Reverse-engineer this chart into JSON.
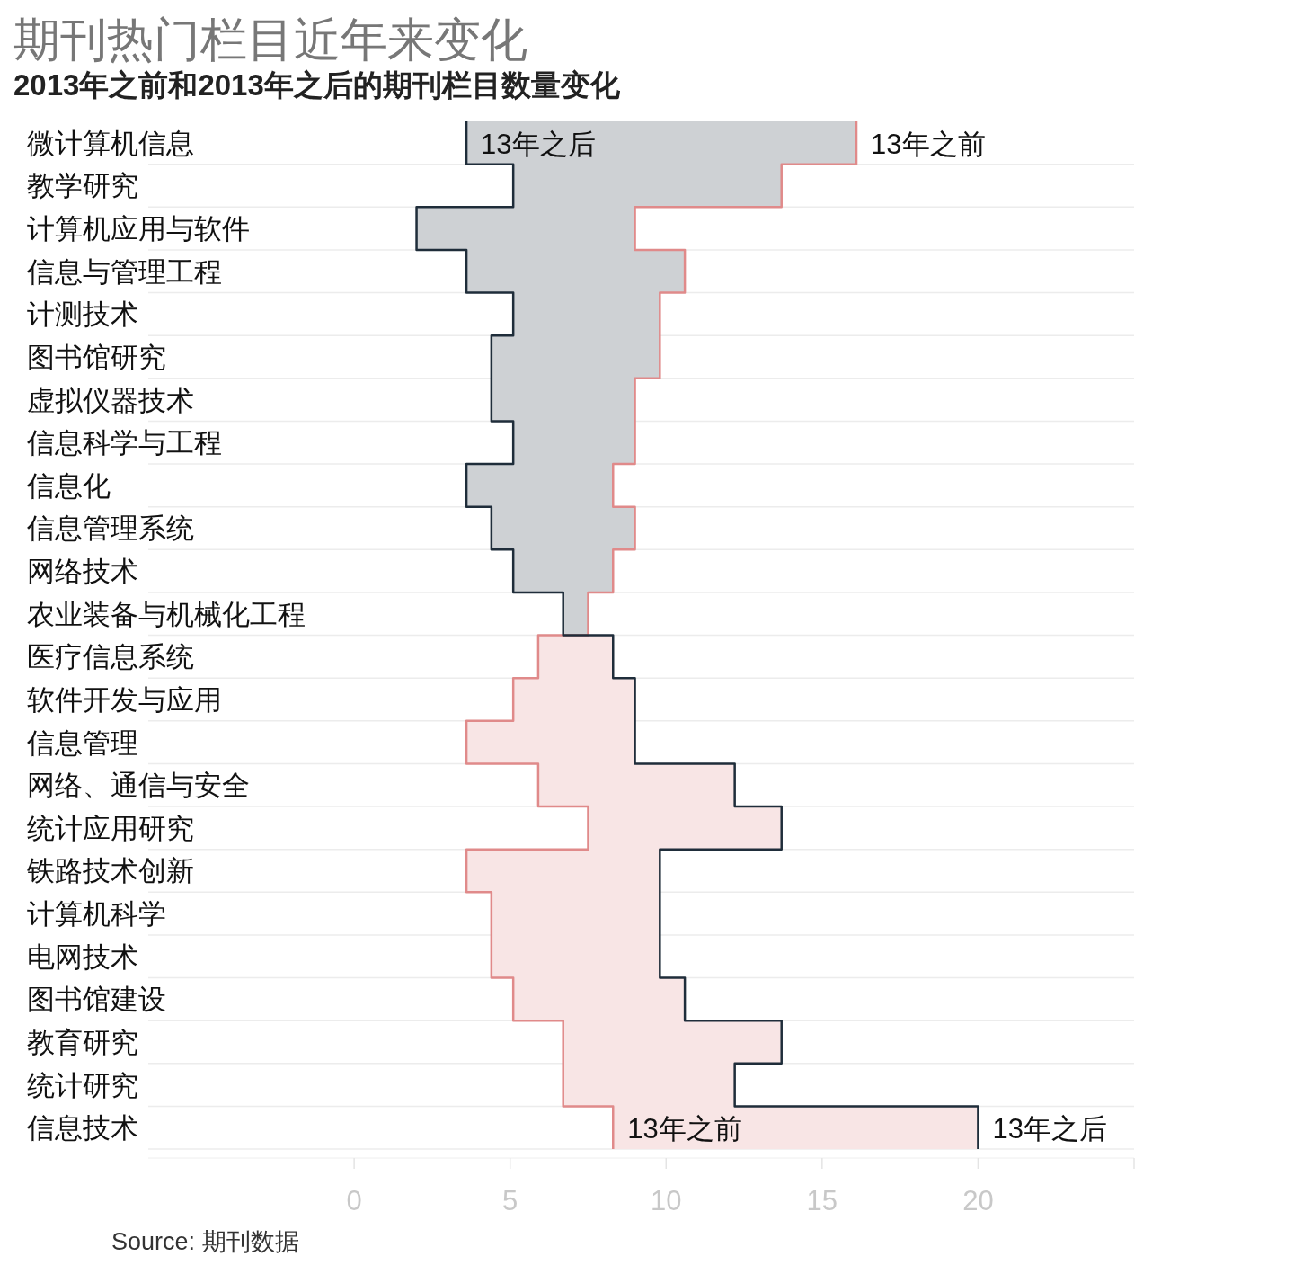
{
  "chart_data": {
    "type": "step",
    "orientation": "horizontal",
    "title": "期刊热门栏目近年来变化",
    "subtitle": "2013年之前和2013年之后的期刊栏目数量变化",
    "categories": [
      "微计算机信息",
      "教学研究",
      "计算机应用与软件",
      "信息与管理工程",
      "计测技术",
      "图书馆研究",
      "虚拟仪器技术",
      "信息科学与工程",
      "信息化",
      "信息管理系统",
      "网络技术",
      "农业装备与机械化工程",
      "医疗信息系统",
      "软件开发与应用",
      "信息管理",
      "网络、通信与安全",
      "统计应用研究",
      "铁路技术创新",
      "计算机科学",
      "电网技术",
      "图书馆建设",
      "教育研究",
      "统计研究",
      "信息技术"
    ],
    "series": [
      {
        "name": "13年之前",
        "color": "#e08a8a",
        "values": [
          16.1,
          13.7,
          9.0,
          10.6,
          9.8,
          9.8,
          9.0,
          9.0,
          8.3,
          9.0,
          8.3,
          7.5,
          5.9,
          5.1,
          3.6,
          5.9,
          7.5,
          3.6,
          4.4,
          4.4,
          5.1,
          6.7,
          6.7,
          8.3
        ]
      },
      {
        "name": "13年之后",
        "color": "#1f2d3a",
        "values": [
          3.6,
          5.1,
          2.0,
          3.6,
          5.1,
          4.4,
          4.4,
          5.1,
          3.6,
          4.4,
          5.1,
          6.7,
          8.3,
          9.0,
          9.0,
          12.2,
          13.7,
          9.8,
          9.8,
          9.8,
          10.6,
          13.7,
          12.2,
          20.0
        ]
      }
    ],
    "xlim": [
      -6.6,
      25
    ],
    "xticks": [
      0,
      5,
      10,
      15,
      20
    ],
    "grid": "y",
    "legend": false,
    "annotations": [
      "Source: 期刊数据"
    ]
  }
}
